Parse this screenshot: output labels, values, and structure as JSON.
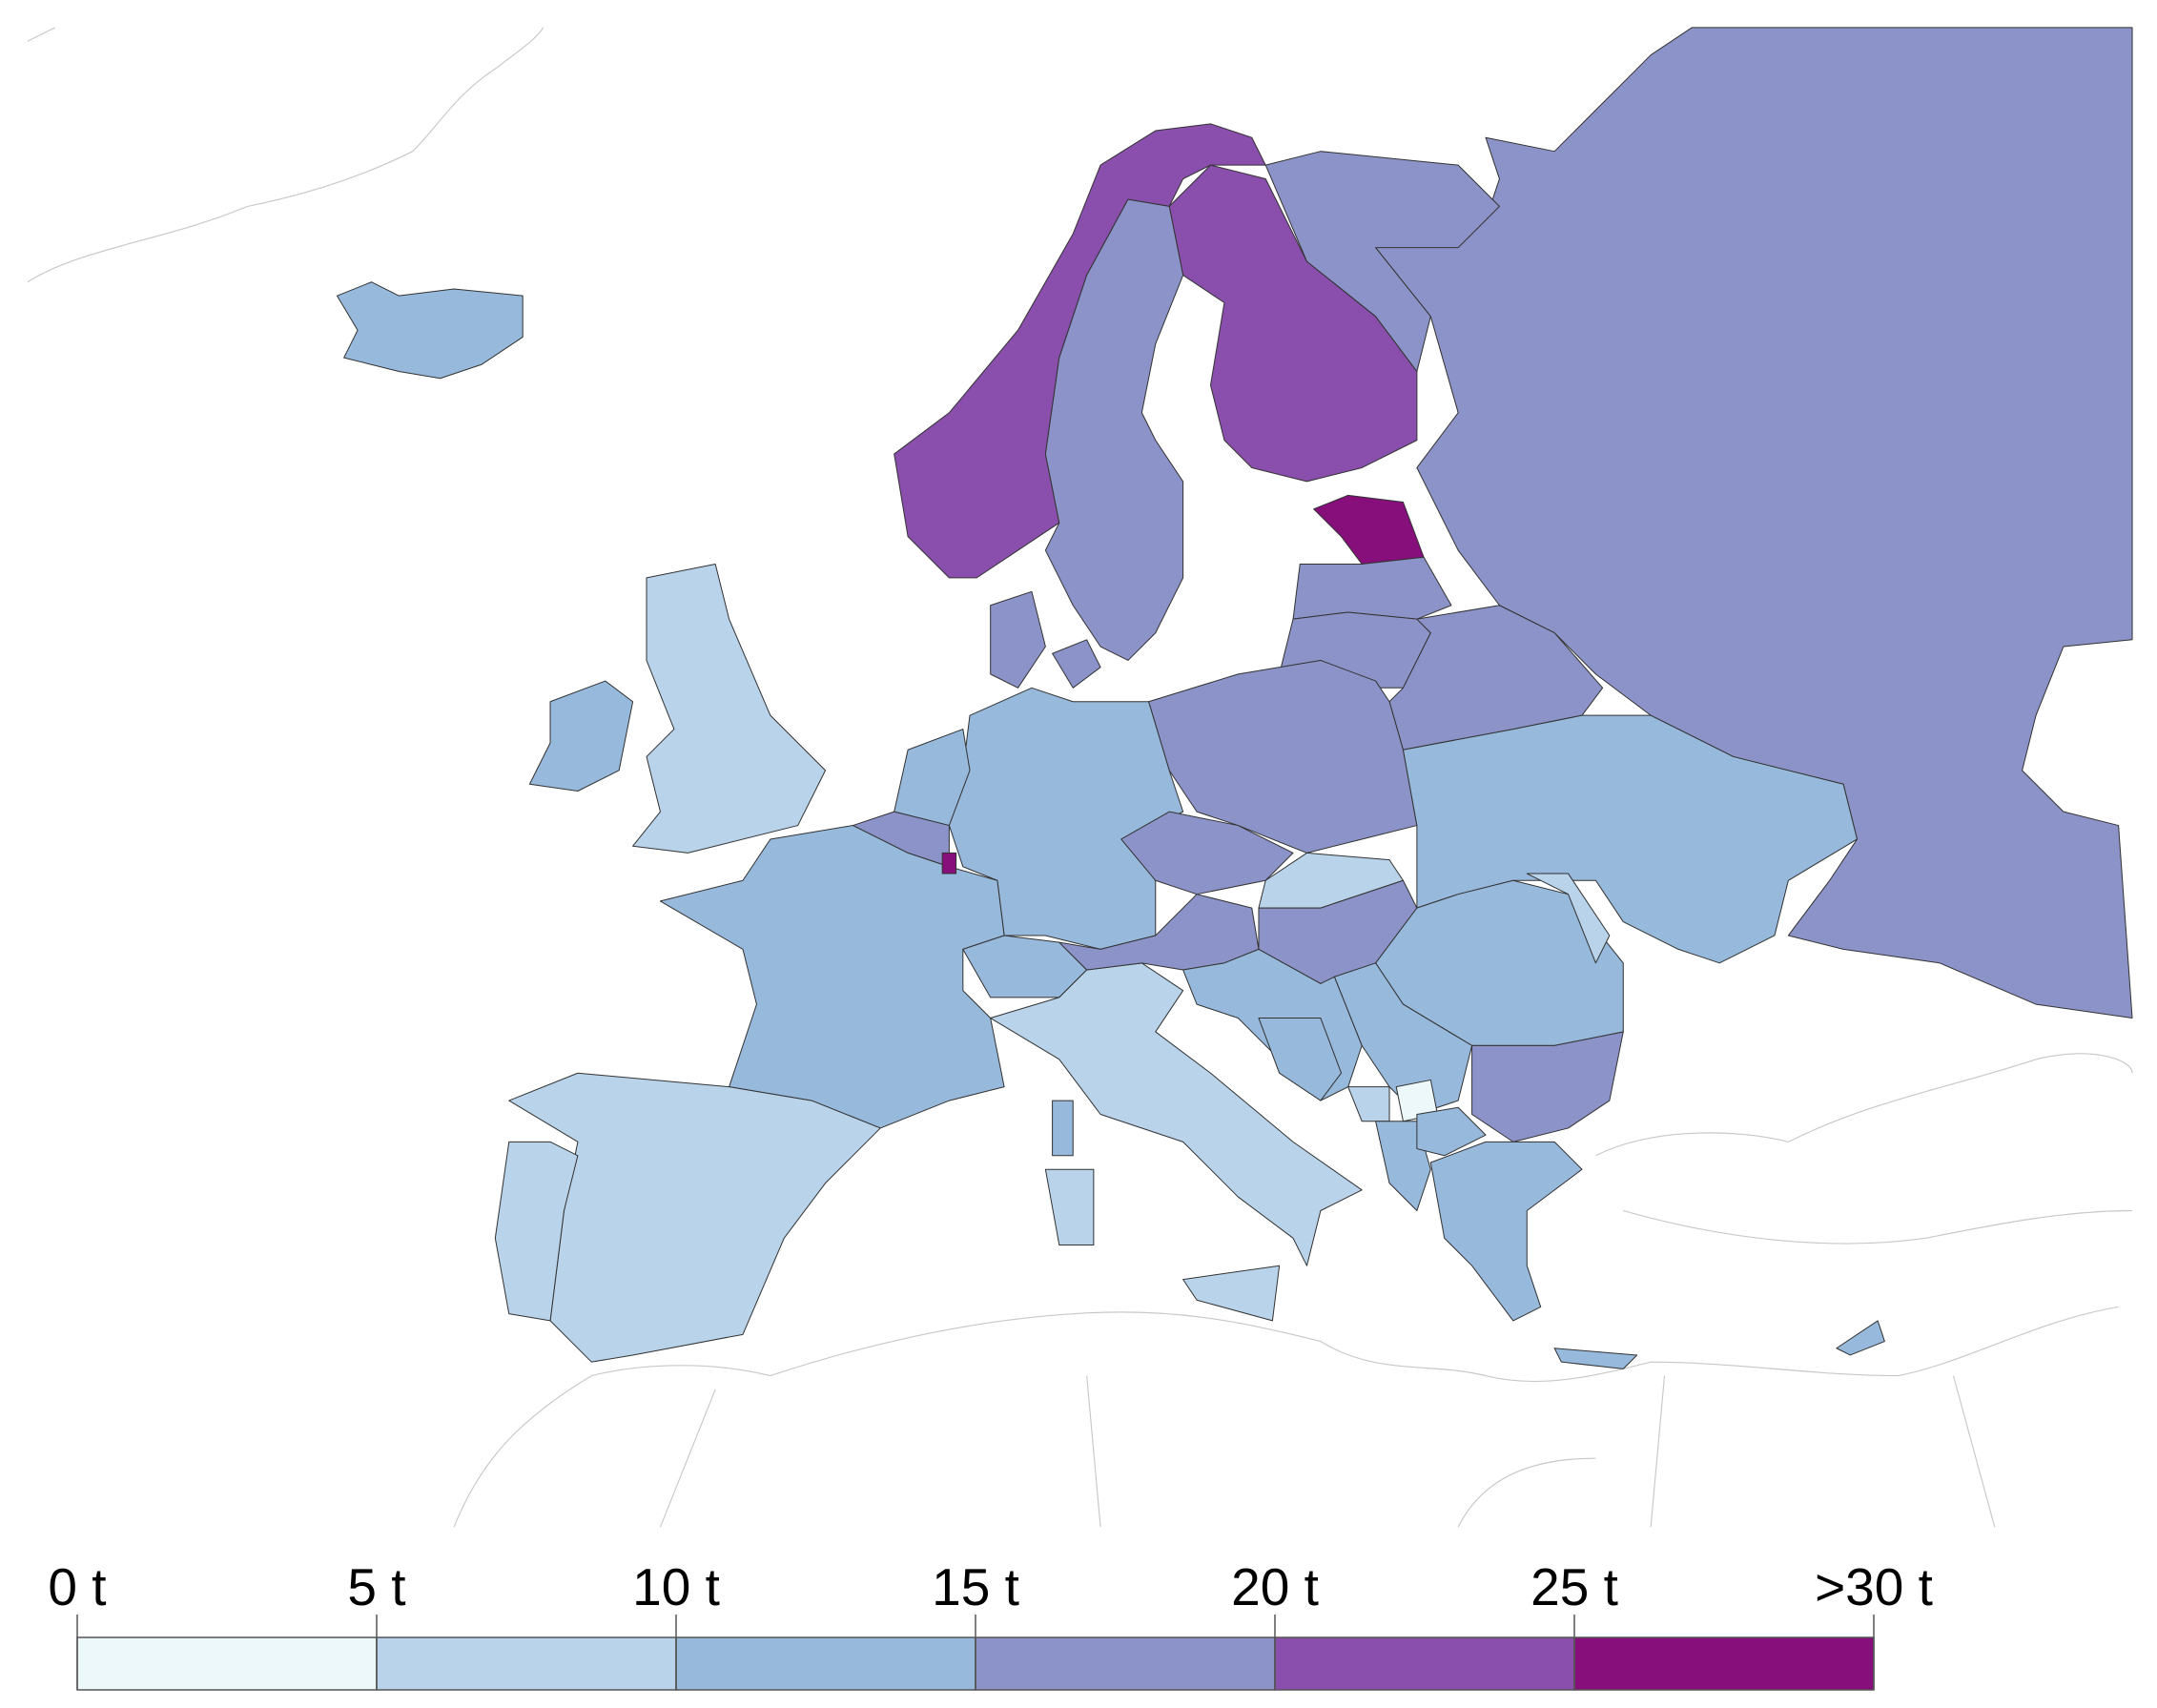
{
  "chart_data": {
    "type": "choropleth",
    "xlim": [
      0,
      30
    ],
    "xticks": [
      {
        "value": 0,
        "label": "0 t"
      },
      {
        "value": 5,
        "label": "5 t"
      },
      {
        "value": 10,
        "label": "10 t"
      },
      {
        "value": 15,
        "label": "15 t"
      },
      {
        "value": 20,
        "label": "20 t"
      },
      {
        "value": 25,
        "label": "25 t"
      },
      {
        "value": 30,
        "label": ">30 t"
      }
    ],
    "colors": [
      "#edf8fb",
      "#b8d3ea",
      "#96b9dc",
      "#8c93c8",
      "#8a4fad",
      "#860f7c"
    ]
  }
}
